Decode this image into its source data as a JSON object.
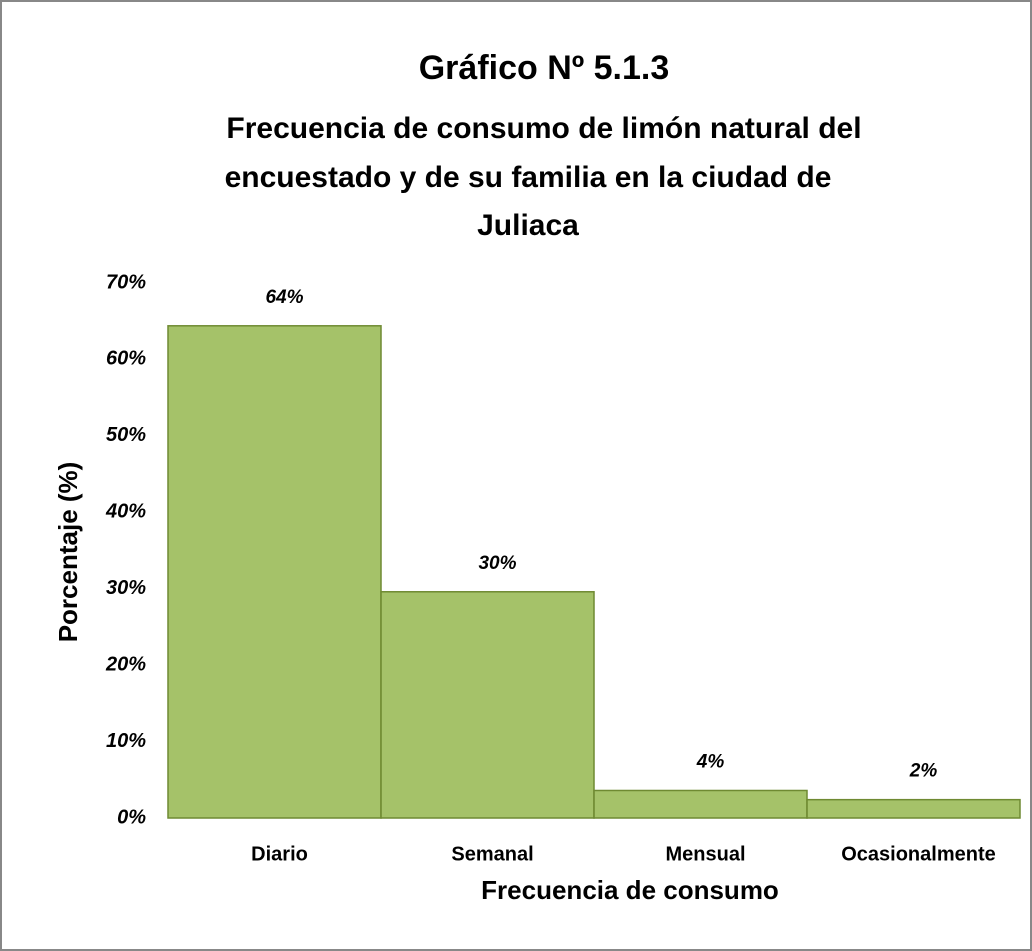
{
  "chart_data": {
    "type": "bar",
    "title": "Gráfico Nº  5.1.3",
    "subtitle": [
      "Frecuencia de consumo de limón natural del",
      "encuestado y de su familia en la ciudad de",
      "Juliaca"
    ],
    "x_label": "Frecuencia de consumo",
    "y_label": "Porcentaje (%)",
    "categories": [
      "Diario",
      "Semanal",
      "Mensual",
      "Ocasionalmente"
    ],
    "values": [
      64.4,
      29.6,
      3.6,
      2.4
    ],
    "value_labels": [
      "64%",
      "30%",
      "4%",
      "2%"
    ],
    "color": "#9bbb59",
    "ylim": [
      0,
      70
    ],
    "yticks": [
      {
        "value": 0,
        "label": "0%"
      },
      {
        "value": 10,
        "label": "10%"
      },
      {
        "value": 20,
        "label": "20%"
      },
      {
        "value": 30,
        "label": "30%"
      },
      {
        "value": 40,
        "label": "40%"
      },
      {
        "value": 50,
        "label": "50%"
      },
      {
        "value": 60,
        "label": "60%"
      },
      {
        "value": 70,
        "label": "70%"
      }
    ],
    "grid": false
  }
}
